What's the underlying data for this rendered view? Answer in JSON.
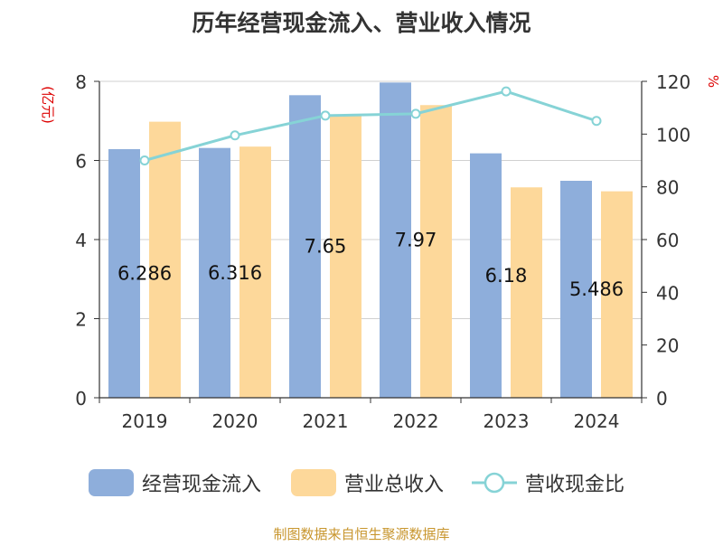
{
  "chart_data": {
    "type": "bar",
    "title": "历年经营现金流入、营业收入情况",
    "source": "制图数据来自恒生聚源数据库",
    "left_axis": {
      "unit_label": "(亿元)",
      "ylim": [
        0,
        8
      ],
      "ticks": [
        "0",
        "2",
        "4",
        "6",
        "8"
      ]
    },
    "right_axis": {
      "unit_label": "%",
      "ylim": [
        0,
        120
      ],
      "ticks": [
        "0",
        "20",
        "40",
        "60",
        "80",
        "100",
        "120"
      ]
    },
    "categories": [
      "2019",
      "2020",
      "2021",
      "2022",
      "2023",
      "2024"
    ],
    "series": [
      {
        "name": "经营现金流入",
        "type": "bar",
        "axis": "left",
        "color": "#8eaedb",
        "values": [
          6.286,
          6.316,
          7.65,
          7.97,
          6.18,
          5.486
        ],
        "labels": [
          "6.286",
          "6.316",
          "7.65",
          "7.97",
          "6.18",
          "5.486"
        ]
      },
      {
        "name": "营业总收入",
        "type": "bar",
        "axis": "left",
        "color": "#fdd89a",
        "values": [
          6.98,
          6.35,
          7.15,
          7.4,
          5.32,
          5.22
        ]
      },
      {
        "name": "营收现金比",
        "type": "line",
        "axis": "right",
        "color": "#86d3d6",
        "values": [
          90,
          99.5,
          107,
          107.7,
          116.2,
          105
        ]
      }
    ],
    "grid": true,
    "legend_position": "bottom"
  }
}
